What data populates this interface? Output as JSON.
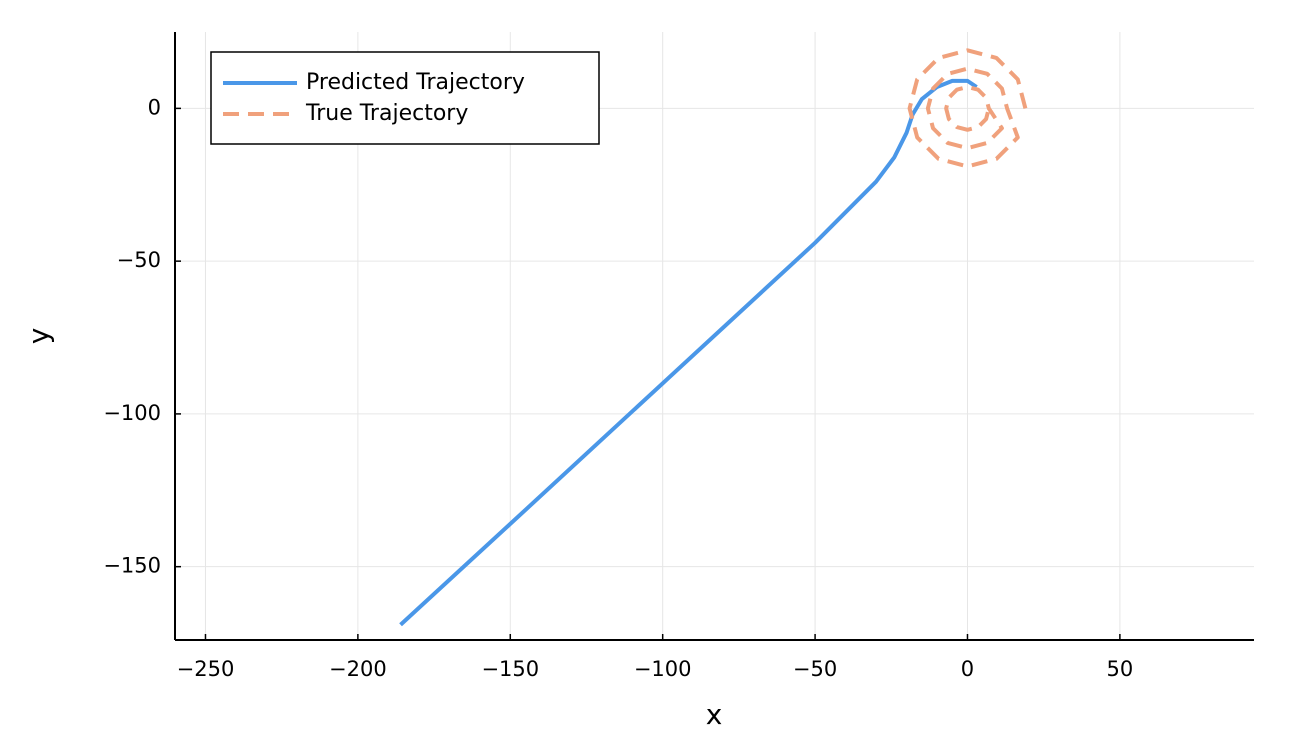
{
  "chart_data": {
    "type": "line",
    "xlabel": "x",
    "ylabel": "y",
    "xlim": [
      -260,
      94
    ],
    "ylim": [
      -174,
      25
    ],
    "xticks": [
      {
        "value": -250,
        "label": "−250"
      },
      {
        "value": -200,
        "label": "−200"
      },
      {
        "value": -150,
        "label": "−150"
      },
      {
        "value": -100,
        "label": "−100"
      },
      {
        "value": -50,
        "label": "−50"
      },
      0,
      50
    ],
    "yticks": [
      {
        "value": -150,
        "label": "−150"
      },
      {
        "value": -100,
        "label": "−100"
      },
      {
        "value": -50,
        "label": "−50"
      },
      0
    ],
    "grid": true,
    "legend": "top-left",
    "series": [
      {
        "name": "Predicted Trajectory",
        "color": "#4a97e8",
        "line_style": "solid",
        "x": [
          -186,
          -150,
          -100,
          -50,
          -30,
          -24,
          -20,
          -18,
          -15,
          -10,
          -5,
          0,
          3
        ],
        "values": [
          -169,
          -136,
          -90,
          -44,
          -24,
          -16,
          -8,
          -2,
          3,
          7,
          9,
          9,
          7
        ]
      },
      {
        "name": "True Trajectory",
        "color": "#f0a17c",
        "line_style": "dashed",
        "x": [
          19,
          16.5,
          9.5,
          0,
          -9.5,
          -16.5,
          -19,
          -16.5,
          -9.5,
          0,
          9.5,
          16.5,
          13,
          11.3,
          6.5,
          0,
          -6.5,
          -11.3,
          -13,
          -11.3,
          -6.5,
          0,
          6.5,
          11.3,
          7,
          6.1,
          3.5,
          0,
          -3.5,
          -6.1,
          -7,
          -6.1,
          -3.5,
          0,
          3.5,
          6.1,
          7
        ],
        "values": [
          0,
          9.5,
          16.5,
          19,
          16.5,
          9.5,
          0,
          -9.5,
          -16.5,
          -19,
          -16.5,
          -9.5,
          0,
          6.5,
          11.3,
          13,
          11.3,
          6.5,
          0,
          -6.5,
          -11.3,
          -13,
          -11.3,
          -6.5,
          0,
          3.5,
          6.1,
          7,
          6.1,
          3.5,
          0,
          -3.5,
          -6.1,
          -7,
          -6.1,
          -3.5,
          0
        ]
      }
    ]
  }
}
